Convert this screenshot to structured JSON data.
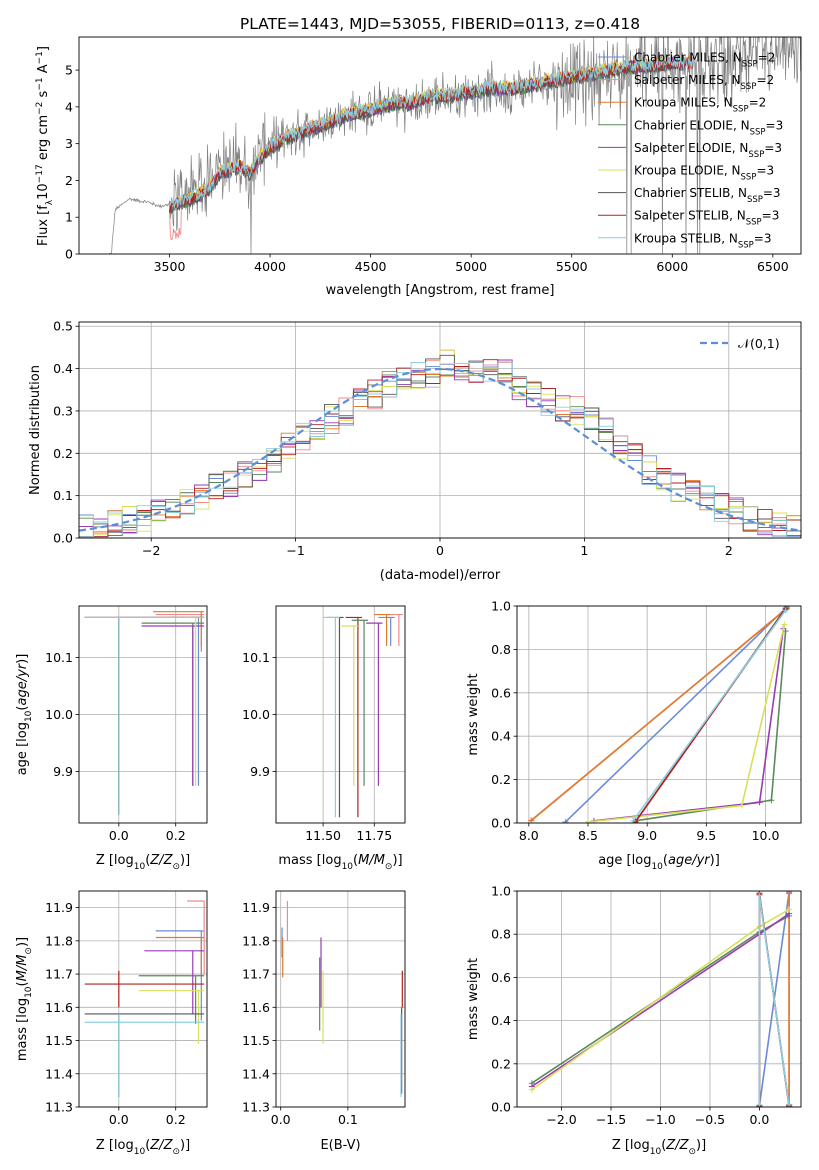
{
  "figure": {
    "title": "PLATE=1443, MJD=53055, FIBERID=0113, z=0.418"
  },
  "colors": {
    "Chabrier MILES": "#6a8bd8",
    "Salpeter MILES": "#f08a8a",
    "Kroupa MILES": "#e07a2e",
    "Chabrier ELODIE": "#5a8a5a",
    "Salpeter ELODIE": "#9b3bb5",
    "Kroupa ELODIE": "#d8e05a",
    "Chabrier STELIB": "#555555",
    "Salpeter STELIB": "#b22222",
    "Kroupa STELIB": "#8ccfe0",
    "data": "#808080",
    "normal": "#5b8fd9"
  },
  "chart_data": [
    {
      "id": "spectrum",
      "type": "line",
      "xlabel": "wavelength [Angstrom, rest frame]",
      "ylabel": "Flux [f_λ 10^-17 erg cm^-2 s^-1 A^-1]",
      "xlim": [
        3050,
        6640
      ],
      "ylim": [
        0,
        5.9
      ],
      "xticks": [
        3500,
        4000,
        4500,
        5000,
        5500,
        6000,
        6500
      ],
      "yticks": [
        0,
        1,
        2,
        3,
        4,
        5
      ],
      "grid": false,
      "legend_position": "top-right",
      "data_envelope": {
        "x": [
          3210,
          3230,
          3300,
          3350,
          3400,
          3450,
          3500,
          3550,
          3600,
          3650,
          3700,
          3750,
          3800,
          3850,
          3900,
          3950,
          4000,
          4100,
          4200,
          4300,
          4400,
          4500,
          4600,
          4700,
          4800,
          4900,
          5000,
          5100,
          5200,
          5300,
          5400,
          5500,
          5600,
          5700,
          5800,
          5900,
          6000,
          6100,
          6200,
          6300,
          6400,
          6500,
          6600
        ],
        "y": [
          0,
          1.2,
          1.5,
          1.45,
          1.4,
          1.3,
          1.35,
          1.6,
          1.7,
          1.8,
          2.1,
          2.5,
          2.4,
          2.6,
          2.2,
          2.8,
          3.0,
          3.2,
          3.4,
          3.6,
          3.8,
          3.9,
          4.1,
          4.0,
          4.2,
          4.3,
          4.4,
          4.5,
          4.4,
          4.6,
          4.7,
          4.7,
          4.8,
          4.9,
          5.0,
          5.1,
          5.2,
          5.1,
          5.3,
          5.2,
          5.4,
          5.3,
          5.5
        ]
      },
      "model_envelope": {
        "x": [
          3500,
          3550,
          3600,
          3650,
          3700,
          3750,
          3800,
          3850,
          3900,
          3950,
          4000,
          4100,
          4200,
          4300,
          4400,
          4500,
          4600,
          4700,
          4800,
          4900,
          5000,
          5100,
          5200,
          5300,
          5400,
          5500,
          5600,
          5700,
          5800,
          5900,
          6000,
          6100
        ],
        "y": [
          1.3,
          1.4,
          1.5,
          1.6,
          1.8,
          2.2,
          2.3,
          2.4,
          2.2,
          2.6,
          2.9,
          3.2,
          3.4,
          3.6,
          3.8,
          3.9,
          4.1,
          4.1,
          4.3,
          4.3,
          4.4,
          4.5,
          4.5,
          4.6,
          4.7,
          4.8,
          4.9,
          5.0,
          5.1,
          5.1,
          5.2,
          5.2
        ]
      },
      "series": [
        {
          "name": "Chabrier MILES, N_SSP=2",
          "name_main": "Chabrier MILES, N",
          "name_sub": "SSP",
          "name_tail": "=2"
        },
        {
          "name": "Salpeter MILES, N_SSP=2",
          "name_main": "Salpeter MILES, N",
          "name_sub": "SSP",
          "name_tail": "=2"
        },
        {
          "name": "Kroupa MILES, N_SSP=2",
          "name_main": "Kroupa MILES, N",
          "name_sub": "SSP",
          "name_tail": "=2"
        },
        {
          "name": "Chabrier ELODIE, N_SSP=3",
          "name_main": "Chabrier ELODIE, N",
          "name_sub": "SSP",
          "name_tail": "=3"
        },
        {
          "name": "Salpeter ELODIE, N_SSP=3",
          "name_main": "Salpeter ELODIE, N",
          "name_sub": "SSP",
          "name_tail": "=3"
        },
        {
          "name": "Kroupa ELODIE, N_SSP=3",
          "name_main": "Kroupa ELODIE, N",
          "name_sub": "SSP",
          "name_tail": "=3"
        },
        {
          "name": "Chabrier STELIB, N_SSP=3",
          "name_main": "Chabrier STELIB, N",
          "name_sub": "SSP",
          "name_tail": "=3"
        },
        {
          "name": "Salpeter STELIB, N_SSP=3",
          "name_main": "Salpeter STELIB, N",
          "name_sub": "SSP",
          "name_tail": "=3"
        },
        {
          "name": "Kroupa STELIB, N_SSP=3",
          "name_main": "Kroupa STELIB, N",
          "name_sub": "SSP",
          "name_tail": "=3"
        }
      ]
    },
    {
      "id": "residuals",
      "type": "line",
      "xlabel": "(data-model)/error",
      "ylabel": "Normed distribution",
      "xlim": [
        -2.5,
        2.5
      ],
      "ylim": [
        0,
        0.51
      ],
      "xticks": [
        -2,
        -1,
        0,
        1,
        2
      ],
      "yticks": [
        0.0,
        0.1,
        0.2,
        0.3,
        0.4,
        0.5
      ],
      "grid": true,
      "legend_position": "top-right",
      "legend": "𝒩(0,1)",
      "bins": [
        -2.5,
        -2.4,
        -2.3,
        -2.2,
        -2.1,
        -2.0,
        -1.9,
        -1.8,
        -1.7,
        -1.6,
        -1.5,
        -1.4,
        -1.3,
        -1.2,
        -1.1,
        -1.0,
        -0.9,
        -0.8,
        -0.7,
        -0.6,
        -0.5,
        -0.4,
        -0.3,
        -0.2,
        -0.1,
        0.0,
        0.1,
        0.2,
        0.3,
        0.4,
        0.5,
        0.6,
        0.7,
        0.8,
        0.9,
        1.0,
        1.1,
        1.2,
        1.3,
        1.4,
        1.5,
        1.6,
        1.7,
        1.8,
        1.9,
        2.0,
        2.1,
        2.2,
        2.3,
        2.4
      ],
      "histogram_mean": [
        0.02,
        0.025,
        0.03,
        0.04,
        0.05,
        0.06,
        0.07,
        0.08,
        0.095,
        0.12,
        0.13,
        0.15,
        0.17,
        0.19,
        0.22,
        0.24,
        0.26,
        0.28,
        0.3,
        0.32,
        0.34,
        0.36,
        0.37,
        0.38,
        0.39,
        0.41,
        0.4,
        0.39,
        0.4,
        0.4,
        0.36,
        0.34,
        0.32,
        0.31,
        0.3,
        0.28,
        0.25,
        0.22,
        0.19,
        0.16,
        0.14,
        0.12,
        0.11,
        0.09,
        0.07,
        0.06,
        0.045,
        0.04,
        0.03,
        0.025
      ],
      "normal_curve": {
        "mu": 0,
        "sigma": 1
      }
    },
    {
      "id": "age_vs_Z",
      "type": "scatter",
      "xlabel": "Z [log10(Z/Z☉)]",
      "ylabel": "age [log10(age/yr)]",
      "xlim": [
        -0.14,
        0.31
      ],
      "ylim": [
        9.81,
        10.19
      ],
      "xticks": [
        0.0,
        0.2
      ],
      "yticks": [
        9.9,
        10.0,
        10.1
      ],
      "grid": true,
      "points": [
        {
          "series": "Chabrier MILES",
          "x": 0.28,
          "y": 10.17,
          "x_lo": 0.18,
          "x_hi": 0.3
        },
        {
          "series": "Salpeter MILES",
          "x": 0.29,
          "y": 10.175,
          "x_lo": 0.13,
          "x_hi": 0.3
        },
        {
          "series": "Kroupa MILES",
          "x": 0.29,
          "y": 10.18,
          "x_lo": 0.12,
          "x_hi": 0.3
        },
        {
          "series": "Chabrier ELODIE",
          "x": 0.26,
          "y": 10.16,
          "x_lo": 0.08,
          "x_hi": 0.3
        },
        {
          "series": "Salpeter ELODIE",
          "x": 0.26,
          "y": 10.155,
          "x_lo": 0.08,
          "x_hi": 0.3
        },
        {
          "series": "Kroupa ELODIE",
          "x": 0.27,
          "y": 10.17,
          "x_lo": 0.0,
          "x_hi": 0.3
        },
        {
          "series": "Chabrier STELIB",
          "x": 0.0,
          "y": 10.17,
          "x_lo": -0.12,
          "x_hi": 0.3
        },
        {
          "series": "Salpeter STELIB",
          "x": 0.0,
          "y": 10.17,
          "x_lo": -0.12,
          "x_hi": 0.3
        },
        {
          "series": "Kroupa STELIB",
          "x": 0.0,
          "y": 10.17,
          "x_lo": -0.12,
          "x_hi": 0.3
        }
      ]
    },
    {
      "id": "age_vs_mass",
      "type": "scatter",
      "xlabel": "mass [log10(M/M☉)]",
      "ylabel": "",
      "xlim": [
        11.27,
        11.9
      ],
      "ylim": [
        9.81,
        10.19
      ],
      "xticks": [
        11.5,
        11.75
      ],
      "yticks": [
        9.9,
        10.0,
        10.1
      ],
      "grid": true,
      "points": [
        {
          "series": "Chabrier MILES",
          "x": 11.83,
          "y": 10.17
        },
        {
          "series": "Salpeter MILES",
          "x": 11.87,
          "y": 10.175
        },
        {
          "series": "Kroupa MILES",
          "x": 11.81,
          "y": 10.175
        },
        {
          "series": "Chabrier ELODIE",
          "x": 11.7,
          "y": 10.165
        },
        {
          "series": "Salpeter ELODIE",
          "x": 11.77,
          "y": 10.16
        },
        {
          "series": "Kroupa ELODIE",
          "x": 11.65,
          "y": 10.155
        },
        {
          "series": "Chabrier STELIB",
          "x": 11.58,
          "y": 10.17
        },
        {
          "series": "Salpeter STELIB",
          "x": 11.67,
          "y": 10.17
        },
        {
          "series": "Kroupa STELIB",
          "x": 11.56,
          "y": 10.17
        }
      ]
    },
    {
      "id": "mass_weight_vs_age",
      "type": "line",
      "xlabel": "age [log10(age/yr)]",
      "ylabel": "mass weight",
      "xlim": [
        7.9,
        10.3
      ],
      "ylim": [
        0,
        1
      ],
      "xticks": [
        8.0,
        8.5,
        9.0,
        9.5,
        10.0
      ],
      "yticks": [
        0.0,
        0.2,
        0.4,
        0.6,
        0.8,
        1.0
      ],
      "grid": true,
      "series": [
        {
          "series": "Chabrier MILES",
          "x": [
            8.31,
            10.18
          ],
          "y": [
            0.005,
            0.995
          ]
        },
        {
          "series": "Salpeter MILES",
          "x": [
            8.02,
            10.18
          ],
          "y": [
            0.01,
            0.99
          ]
        },
        {
          "series": "Kroupa MILES",
          "x": [
            8.02,
            10.18
          ],
          "y": [
            0.012,
            0.988
          ]
        },
        {
          "series": "Chabrier ELODIE",
          "x": [
            8.9,
            10.05,
            10.17
          ],
          "y": [
            0.01,
            0.105,
            0.885
          ]
        },
        {
          "series": "Salpeter ELODIE",
          "x": [
            8.55,
            9.95,
            10.15
          ],
          "y": [
            0.01,
            0.095,
            0.895
          ]
        },
        {
          "series": "Kroupa ELODIE",
          "x": [
            8.5,
            9.8,
            10.16
          ],
          "y": [
            0.005,
            0.08,
            0.915
          ]
        },
        {
          "series": "Chabrier STELIB",
          "x": [
            8.9,
            10.17
          ],
          "y": [
            0.005,
            0.99
          ]
        },
        {
          "series": "Salpeter STELIB",
          "x": [
            8.9,
            10.17
          ],
          "y": [
            0.005,
            0.985
          ]
        },
        {
          "series": "Kroupa STELIB",
          "x": [
            8.88,
            10.17
          ],
          "y": [
            0.01,
            0.98
          ]
        }
      ]
    },
    {
      "id": "mass_vs_Z",
      "type": "scatter",
      "xlabel": "Z [log10(Z/Z☉)]",
      "ylabel": "mass [log10(M/M☉)]",
      "xlim": [
        -0.14,
        0.31
      ],
      "ylim": [
        11.3,
        11.95
      ],
      "xticks": [
        0.0,
        0.2
      ],
      "yticks": [
        11.3,
        11.4,
        11.5,
        11.6,
        11.7,
        11.8,
        11.9
      ],
      "grid": true,
      "points": [
        {
          "series": "Chabrier MILES",
          "x": 0.29,
          "y": 11.83,
          "x_lo": 0.13,
          "x_hi": 0.3,
          "y_lo": 11.56,
          "y_hi": 11.83
        },
        {
          "series": "Salpeter MILES",
          "x": 0.3,
          "y": 11.92,
          "x_lo": 0.24,
          "x_hi": 0.3,
          "y_lo": 11.7,
          "y_hi": 11.92
        },
        {
          "series": "Kroupa MILES",
          "x": 0.29,
          "y": 11.81,
          "x_lo": 0.13,
          "x_hi": 0.3,
          "y_lo": 11.7,
          "y_hi": 11.81
        },
        {
          "series": "Chabrier ELODIE",
          "x": 0.27,
          "y": 11.695,
          "x_lo": 0.07,
          "x_hi": 0.3,
          "y_lo": 11.55,
          "y_hi": 11.695
        },
        {
          "series": "Salpeter ELODIE",
          "x": 0.26,
          "y": 11.77,
          "x_lo": 0.09,
          "x_hi": 0.3,
          "y_lo": 11.58,
          "y_hi": 11.77
        },
        {
          "series": "Kroupa ELODIE",
          "x": 0.28,
          "y": 11.65,
          "x_lo": 0.07,
          "x_hi": 0.3,
          "y_lo": 11.49,
          "y_hi": 11.65
        },
        {
          "series": "Chabrier STELIB",
          "x": 0.0,
          "y": 11.58,
          "x_lo": -0.12,
          "x_hi": 0.3,
          "y_lo": 11.33,
          "y_hi": 11.58
        },
        {
          "series": "Salpeter STELIB",
          "x": 0.0,
          "y": 11.67,
          "x_lo": -0.12,
          "x_hi": 0.3,
          "y_lo": 11.6,
          "y_hi": 11.71
        },
        {
          "series": "Kroupa STELIB",
          "x": 0.0,
          "y": 11.555,
          "x_lo": -0.12,
          "x_hi": 0.3,
          "y_lo": 11.33,
          "y_hi": 11.58
        }
      ]
    },
    {
      "id": "mass_vs_ebv",
      "type": "scatter",
      "xlabel": "E(B-V)",
      "ylabel": "",
      "xlim": [
        -0.007,
        0.185
      ],
      "ylim": [
        11.3,
        11.95
      ],
      "xticks": [
        0.0,
        0.1
      ],
      "yticks": [
        11.3,
        11.4,
        11.5,
        11.6,
        11.7,
        11.8,
        11.9
      ],
      "grid": true,
      "points": [
        {
          "series": "Chabrier MILES",
          "x": 0.002,
          "y": 11.83,
          "y_lo": 11.75,
          "y_hi": 11.84
        },
        {
          "series": "Salpeter MILES",
          "x": 0.01,
          "y": 11.92,
          "y_lo": 11.8,
          "y_hi": 11.92
        },
        {
          "series": "Kroupa MILES",
          "x": 0.003,
          "y": 11.81,
          "y_lo": 11.69,
          "y_hi": 11.81
        },
        {
          "series": "Chabrier ELODIE",
          "x": 0.058,
          "y": 11.695,
          "y_lo": 11.53,
          "y_hi": 11.75
        },
        {
          "series": "Salpeter ELODIE",
          "x": 0.06,
          "y": 11.77,
          "y_lo": 11.6,
          "y_hi": 11.81
        },
        {
          "series": "Kroupa ELODIE",
          "x": 0.063,
          "y": 11.65,
          "y_lo": 11.49,
          "y_hi": 11.71
        },
        {
          "series": "Chabrier STELIB",
          "x": 0.18,
          "y": 11.58,
          "y_lo": 11.34,
          "y_hi": 11.6
        },
        {
          "series": "Salpeter STELIB",
          "x": 0.181,
          "y": 11.67,
          "y_lo": 11.6,
          "y_hi": 11.71
        },
        {
          "series": "Kroupa STELIB",
          "x": 0.179,
          "y": 11.555,
          "y_lo": 11.33,
          "y_hi": 11.58
        }
      ]
    },
    {
      "id": "mass_weight_vs_Z",
      "type": "line",
      "xlabel": "Z [log10(Z/Z☉)]",
      "ylabel": "mass weight",
      "xlim": [
        -2.45,
        0.42
      ],
      "ylim": [
        0,
        1
      ],
      "xticks": [
        -2.0,
        -1.5,
        -1.0,
        -0.5,
        0.0
      ],
      "yticks": [
        0.0,
        0.2,
        0.4,
        0.6,
        0.8,
        1.0
      ],
      "grid": true,
      "series": [
        {
          "series": "Chabrier MILES",
          "x": [
            0.0,
            0.3
          ],
          "y": [
            0.005,
            0.995
          ]
        },
        {
          "series": "Salpeter MILES",
          "x": [
            0.3,
            0.3
          ],
          "y": [
            0.01,
            0.99
          ]
        },
        {
          "series": "Kroupa MILES",
          "x": [
            0.3,
            0.3
          ],
          "y": [
            0.012,
            0.988
          ]
        },
        {
          "series": "Chabrier ELODIE",
          "x": [
            -2.3,
            0.0,
            0.3
          ],
          "y": [
            0.11,
            0.81,
            0.885
          ]
        },
        {
          "series": "Salpeter ELODIE",
          "x": [
            -2.3,
            0.0,
            0.3
          ],
          "y": [
            0.095,
            0.8,
            0.895
          ]
        },
        {
          "series": "Kroupa ELODIE",
          "x": [
            -2.3,
            0.0,
            0.3
          ],
          "y": [
            0.08,
            0.835,
            0.915
          ]
        },
        {
          "series": "Chabrier STELIB",
          "x": [
            0.0,
            0.0,
            0.3
          ],
          "y": [
            0.005,
            0.99,
            0.005
          ]
        },
        {
          "series": "Salpeter STELIB",
          "x": [
            0.0,
            0.0,
            0.3
          ],
          "y": [
            0.005,
            0.985,
            0.005
          ]
        },
        {
          "series": "Kroupa STELIB",
          "x": [
            0.0,
            0.0,
            0.3
          ],
          "y": [
            0.01,
            0.98,
            0.01
          ]
        }
      ]
    }
  ]
}
